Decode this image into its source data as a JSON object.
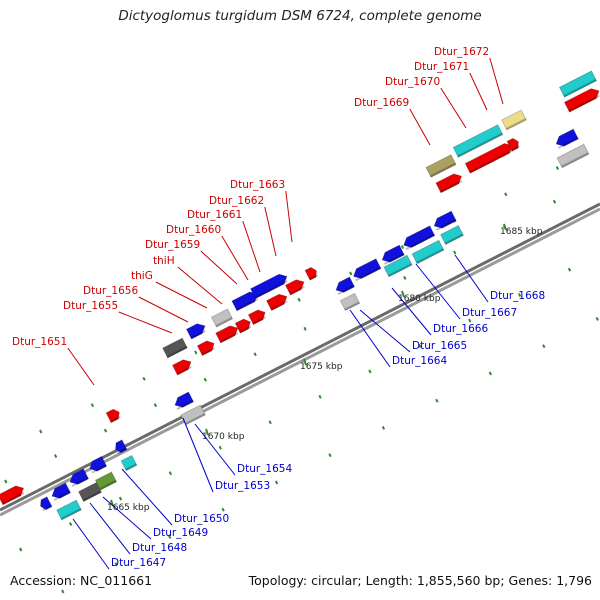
{
  "title": "Dictyoglomus turgidum DSM 6724, complete genome",
  "footer": {
    "accession": "Accession: NC_011661",
    "summary": "Topology: circular; Length: 1,855,560 bp; Genes: 1,796"
  },
  "colors": {
    "backbone": "#8a8a8a",
    "top_strand_label": "#cc0000",
    "bottom_strand_label": "#0000cc",
    "tick": "#2e8b2e",
    "gene_red": "#ee0000",
    "gene_blue": "#1111dd",
    "gene_cyan": "#22cccc",
    "gene_gray": "#c0c0c0",
    "gene_darkgray": "#555555",
    "gene_olive": "#aaa060",
    "gene_green": "#669933",
    "gene_yellow": "#eedd88"
  },
  "scale": {
    "ticks_kbp": [
      {
        "value": 1665,
        "label": "1665 kbp"
      },
      {
        "value": 1670,
        "label": "1670 kbp"
      },
      {
        "value": 1675,
        "label": "1675 kbp"
      },
      {
        "value": 1680,
        "label": "1680 kbp"
      },
      {
        "value": 1685,
        "label": "1685 kbp"
      }
    ]
  },
  "gene_labels": {
    "top_strand": [
      "Dtur_1651",
      "Dtur_1655",
      "Dtur_1656",
      "thiG",
      "thiH",
      "Dtur_1659",
      "Dtur_1660",
      "Dtur_1661",
      "Dtur_1662",
      "Dtur_1663",
      "Dtur_1669",
      "Dtur_1670",
      "Dtur_1671",
      "Dtur_1672"
    ],
    "bottom_strand": [
      "Dtur_1647",
      "Dtur_1648",
      "Dtur_1649",
      "Dtur_1650",
      "Dtur_1653",
      "Dtur_1654",
      "Dtur_1664",
      "Dtur_1665",
      "Dtur_1666",
      "Dtur_1667",
      "Dtur_1668"
    ]
  }
}
